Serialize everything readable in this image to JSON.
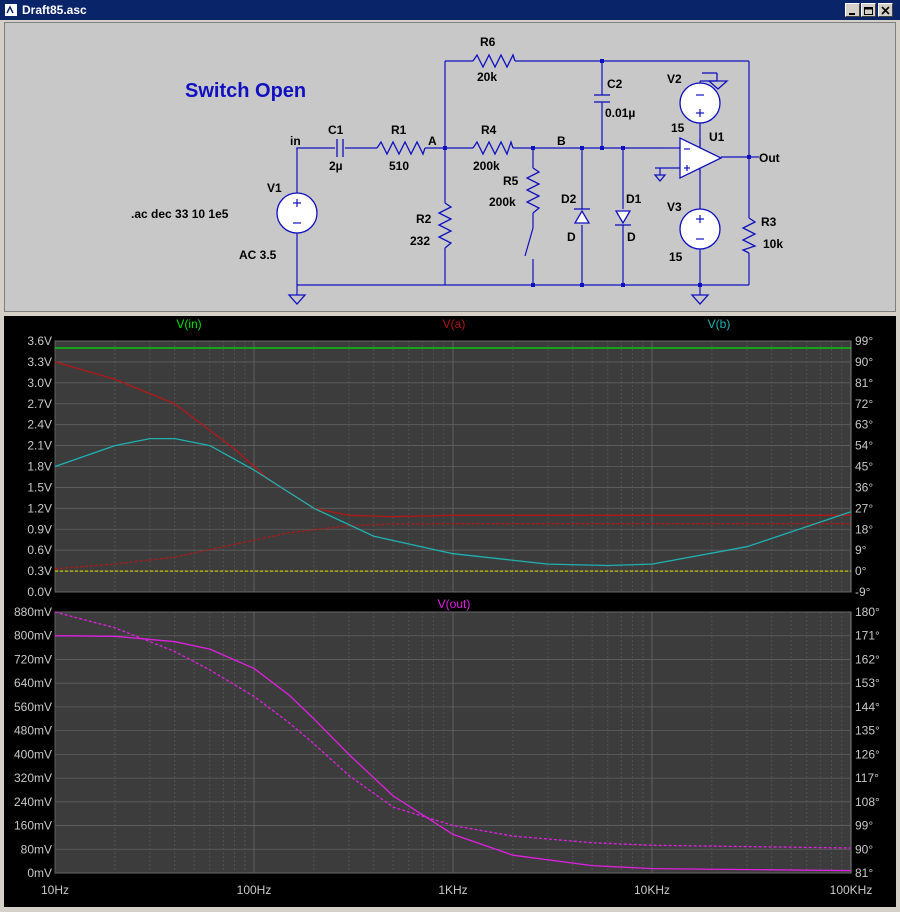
{
  "window": {
    "title": "Draft85.asc"
  },
  "schematic": {
    "annotation": "Switch Open",
    "directive": ".ac dec 33 10 1e5",
    "nets": {
      "in": "in",
      "a": "A",
      "b": "B",
      "out": "Out"
    },
    "components": {
      "R6": {
        "name": "R6",
        "value": "20k"
      },
      "C2": {
        "name": "C2",
        "value": "0.01µ"
      },
      "V2": {
        "name": "V2",
        "value": "15"
      },
      "U1": {
        "name": "U1"
      },
      "C1": {
        "name": "C1",
        "value": "2µ"
      },
      "R1": {
        "name": "R1",
        "value": "510"
      },
      "R4": {
        "name": "R4",
        "value": "200k"
      },
      "R5": {
        "name": "R5",
        "value": "200k"
      },
      "V1": {
        "name": "V1",
        "value": "AC 3.5"
      },
      "R2": {
        "name": "R2",
        "value": "232"
      },
      "D2": {
        "name": "D2",
        "value": "D"
      },
      "D1": {
        "name": "D1",
        "value": "D"
      },
      "V3": {
        "name": "V3",
        "value": "15"
      },
      "R3": {
        "name": "R3",
        "value": "10k"
      }
    }
  },
  "colors": {
    "green": "#00e000",
    "red": "#b01818",
    "cyan": "#20b0b0",
    "magenta": "#e020e0",
    "grid": "#606060",
    "background": "#3c3c3c",
    "axis_text": "#c8c8c8"
  },
  "chart_data": [
    {
      "type": "line",
      "x_scale": "log",
      "xlim": [
        10,
        100000
      ],
      "x_tick_labels": [
        "10Hz",
        "100Hz",
        "1KHz",
        "10KHz",
        "100KHz"
      ],
      "ylim": [
        0,
        3.6
      ],
      "y_tick_labels": [
        "0.0V",
        "0.3V",
        "0.6V",
        "0.9V",
        "1.2V",
        "1.5V",
        "1.8V",
        "2.1V",
        "2.4V",
        "2.7V",
        "3.0V",
        "3.3V",
        "3.6V"
      ],
      "y2lim": [
        -9,
        99
      ],
      "y2_tick_labels": [
        "-9°",
        "0°",
        "9°",
        "18°",
        "27°",
        "36°",
        "45°",
        "54°",
        "63°",
        "72°",
        "81°",
        "90°",
        "99°"
      ],
      "series": [
        {
          "name": "V(in)",
          "color": "#00e000",
          "magnitude": {
            "x": [
              10,
              100000
            ],
            "y": [
              3.5,
              3.5
            ]
          },
          "phase": {
            "x": [
              10,
              100000
            ],
            "y": [
              0,
              0
            ]
          }
        },
        {
          "name": "V(a)",
          "color": "#b01818",
          "magnitude": {
            "x": [
              10,
              20,
              40,
              80,
              120,
              200,
              300,
              500,
              1000,
              10000,
              100000
            ],
            "y": [
              3.3,
              3.05,
              2.7,
              2.05,
              1.6,
              1.2,
              1.1,
              1.08,
              1.1,
              1.1,
              1.1
            ]
          },
          "phase": {
            "x": [
              10,
              20,
              40,
              80,
              150,
              300,
              500,
              1000,
              10000,
              100000
            ],
            "y": [
              1,
              3,
              6,
              11.5,
              16.5,
              19.5,
              20.2,
              20.4,
              20.4,
              20.4
            ]
          }
        },
        {
          "name": "V(b)",
          "color": "#20b0b0",
          "magnitude": {
            "x": [
              10,
              20,
              30,
              40,
              60,
              100,
              200,
              400,
              1000,
              3000,
              6000,
              10000,
              30000,
              100000
            ],
            "y": [
              1.8,
              2.1,
              2.2,
              2.2,
              2.1,
              1.75,
              1.2,
              0.8,
              0.55,
              0.4,
              0.38,
              0.4,
              0.65,
              1.15
            ]
          }
        }
      ]
    },
    {
      "type": "line",
      "x_scale": "log",
      "xlim": [
        10,
        100000
      ],
      "x_tick_labels": [
        "10Hz",
        "100Hz",
        "1KHz",
        "10KHz",
        "100KHz"
      ],
      "ylim": [
        0,
        880
      ],
      "y_unit": "mV",
      "y_tick_labels": [
        "0mV",
        "80mV",
        "160mV",
        "240mV",
        "320mV",
        "400mV",
        "480mV",
        "560mV",
        "640mV",
        "720mV",
        "800mV",
        "880mV"
      ],
      "y2lim": [
        81,
        180
      ],
      "y2_tick_labels": [
        "81°",
        "90°",
        "99°",
        "108°",
        "117°",
        "126°",
        "135°",
        "144°",
        "153°",
        "162°",
        "171°",
        "180°"
      ],
      "series": [
        {
          "name": "V(out)",
          "color": "#e020e0",
          "magnitude": {
            "x": [
              10,
              20,
              40,
              60,
              100,
              150,
              200,
              300,
              500,
              1000,
              2000,
              5000,
              10000,
              100000
            ],
            "y": [
              800,
              798,
              780,
              755,
              690,
              600,
              520,
              400,
              260,
              130,
              60,
              25,
              15,
              8
            ]
          },
          "phase": {
            "x": [
              10,
              20,
              40,
              60,
              100,
              150,
              200,
              300,
              500,
              1000,
              2000,
              5000,
              10000,
              100000
            ],
            "y": [
              180,
              174,
              165,
              158,
              148,
              138,
              130,
              118,
              106,
              99,
              95,
              92.5,
              91.5,
              90.5
            ]
          }
        }
      ]
    }
  ]
}
